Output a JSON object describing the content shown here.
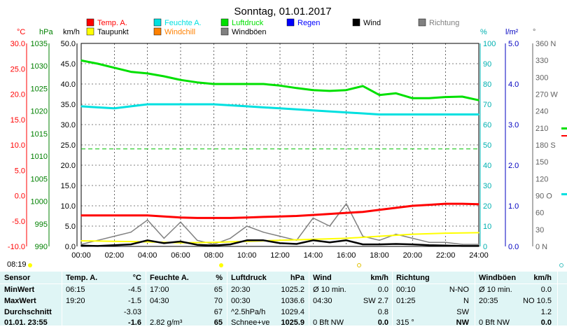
{
  "chart_data": {
    "type": "line",
    "title": "Sonntag, 01.01.2017",
    "x_ticks": [
      "00:00",
      "02:00",
      "04:00",
      "06:00",
      "08:00",
      "10:00",
      "12:00",
      "14:00",
      "16:00",
      "18:00",
      "20:00",
      "22:00",
      "24:00"
    ],
    "left_axes": [
      {
        "unit": "°C",
        "ticks": [
          "30.0",
          "25.0",
          "20.0",
          "15.0",
          "10.0",
          "5.0",
          "0.0",
          "-5.0",
          "-10.0"
        ],
        "color": "#ff0000",
        "range": [
          -10,
          30
        ]
      },
      {
        "unit": "hPa",
        "ticks": [
          "1035",
          "1030",
          "1025",
          "1020",
          "1015",
          "1010",
          "1005",
          "1000",
          "995",
          "990"
        ],
        "color": "#008000",
        "range": [
          990,
          1040
        ]
      },
      {
        "unit": "km/h",
        "ticks": [
          "50.0",
          "45.0",
          "40.0",
          "35.0",
          "30.0",
          "25.0",
          "20.0",
          "15.0",
          "10.0",
          "5.0",
          "0.0"
        ],
        "color": "#000000",
        "range": [
          0,
          50
        ]
      }
    ],
    "right_axes": [
      {
        "unit": "%",
        "ticks": [
          "100",
          "90",
          "80",
          "70",
          "60",
          "50",
          "40",
          "30",
          "20",
          "10",
          "0"
        ],
        "color": "#00b0b0",
        "range": [
          0,
          100
        ]
      },
      {
        "unit": "l/m²",
        "ticks": [
          "5.0",
          "4.0",
          "3.0",
          "2.0",
          "1.0",
          "0.0"
        ],
        "color": "#0000c0",
        "range": [
          0,
          5
        ]
      },
      {
        "unit": "°",
        "ticks": [
          "360 N",
          "330",
          "300",
          "270 W",
          "240",
          "210",
          "180 S",
          "150",
          "120",
          "90 O",
          "60",
          "30",
          "0 N"
        ],
        "color": "#606060",
        "range": [
          0,
          360
        ]
      }
    ],
    "legend": [
      {
        "name": "Temp. A.",
        "color": "#ff0000"
      },
      {
        "name": "Feuchte A.",
        "color": "#00e0e0"
      },
      {
        "name": "Luftdruck",
        "color": "#00e000"
      },
      {
        "name": "Regen",
        "color": "#0000ff"
      },
      {
        "name": "Wind",
        "color": "#000000"
      },
      {
        "name": "Richtung",
        "color": "#808080"
      },
      {
        "name": "Taupunkt",
        "color": "#ffff00"
      },
      {
        "name": "Windchill",
        "color": "#ff8000"
      },
      {
        "name": "Windböen",
        "color": "#808080"
      }
    ],
    "series": [
      {
        "name": "Temp. A.",
        "color": "#ff0000",
        "x": [
          0,
          1,
          2,
          3,
          4,
          5,
          6,
          7,
          8,
          9,
          10,
          11,
          12,
          13,
          14,
          15,
          16,
          17,
          18,
          19,
          20,
          21,
          22,
          23,
          24
        ],
        "values": [
          -3.9,
          -3.9,
          -3.9,
          -3.9,
          -3.9,
          -4.1,
          -4.3,
          -4.4,
          -4.4,
          -4.4,
          -4.3,
          -4.2,
          -4.1,
          -4.0,
          -3.8,
          -3.6,
          -3.4,
          -3.2,
          -2.8,
          -2.4,
          -2.0,
          -1.8,
          -1.6,
          -1.6,
          -1.7
        ]
      },
      {
        "name": "Feuchte A.",
        "color": "#00e0e0",
        "x": [
          0,
          2,
          4,
          6,
          8,
          10,
          12,
          14,
          16,
          18,
          20,
          22,
          24
        ],
        "values": [
          69,
          68,
          70,
          70,
          70,
          69,
          68,
          67,
          66,
          65,
          65,
          65,
          65
        ]
      },
      {
        "name": "Luftdruck",
        "color": "#00e000",
        "x": [
          0,
          1,
          2,
          3,
          4,
          5,
          6,
          7,
          8,
          9,
          10,
          11,
          12,
          13,
          14,
          15,
          16,
          17,
          18,
          19,
          20,
          21,
          22,
          23,
          24
        ],
        "values": [
          1035.8,
          1035.0,
          1034.0,
          1033.0,
          1032.6,
          1031.9,
          1031.0,
          1030.4,
          1030.0,
          1030.0,
          1030.0,
          1030.0,
          1029.6,
          1029.0,
          1028.5,
          1028.3,
          1028.5,
          1029.5,
          1027.3,
          1027.7,
          1026.5,
          1026.5,
          1026.8,
          1026.9,
          1026.0
        ]
      },
      {
        "name": "Taupunkt",
        "color": "#ffff00",
        "x": [
          0,
          2,
          4,
          6,
          8,
          10,
          12,
          14,
          16,
          18,
          20,
          22,
          24
        ],
        "values": [
          -8.9,
          -9.0,
          -9.1,
          -9.3,
          -9.2,
          -9.0,
          -8.8,
          -8.6,
          -8.4,
          -8.0,
          -7.6,
          -7.4,
          -7.3
        ]
      },
      {
        "name": "Wind",
        "color": "#000000",
        "x": [
          0,
          1,
          2,
          3,
          4,
          5,
          6,
          7,
          8,
          9,
          10,
          11,
          12,
          13,
          14,
          15,
          16,
          17,
          18,
          19,
          20,
          21,
          22,
          23,
          24
        ],
        "values": [
          0.2,
          0.1,
          0.3,
          0.5,
          1.5,
          0.8,
          1.2,
          0.4,
          0.2,
          0.5,
          1.5,
          1.5,
          0.8,
          0.6,
          1.5,
          1.0,
          1.5,
          0.5,
          0.5,
          0.6,
          0.5,
          0.3,
          0.2,
          0.1,
          0.1
        ]
      },
      {
        "name": "Windböen",
        "color": "#808080",
        "x": [
          0,
          1,
          2,
          3,
          4,
          5,
          6,
          7,
          8,
          9,
          10,
          11,
          12,
          13,
          14,
          15,
          16,
          17,
          18,
          19,
          20,
          21,
          22,
          23,
          24
        ],
        "values": [
          0.5,
          1.5,
          2.5,
          3.5,
          6.5,
          2.0,
          6.0,
          1.5,
          0.5,
          2.0,
          5.0,
          3.5,
          2.5,
          1.5,
          7.0,
          5.0,
          10.5,
          2.5,
          1.5,
          3.0,
          2.0,
          1.0,
          1.0,
          0.5,
          0.5
        ]
      }
    ],
    "ylim_temp": [
      -10,
      30
    ],
    "grid": true
  },
  "time_label": "08:19",
  "stats": {
    "headers": [
      "Sensor",
      "Temp. A.",
      "°C",
      "Feuchte A.",
      "%",
      "Luftdruck",
      "hPa",
      "Wind",
      "km/h",
      "Richtung",
      "",
      "Windböen",
      "km/h"
    ],
    "rows": [
      [
        "MinWert",
        "06:15",
        "-4.5",
        "17:00",
        "65",
        "20:30",
        "1025.2",
        "Ø 10 min.",
        "0.0",
        "00:10",
        "N-NO",
        "Ø 10 min.",
        "0.0"
      ],
      [
        "MaxWert",
        "19:20",
        "-1.5",
        "04:30",
        "70",
        "00:30",
        "1036.6",
        "04:30",
        "SW 2.7",
        "01:25",
        "N",
        "20:35",
        "NO 10.5"
      ],
      [
        "Durchschnitt",
        "",
        "-3.03",
        "",
        "67",
        "^2.5hPa/h",
        "1029.4",
        "",
        "0.8",
        "",
        "SW",
        "",
        "1.2"
      ],
      [
        "01.01. 23:55",
        "",
        "-1.6",
        "2.82 g/m³",
        "65",
        "Schnee+ve",
        "1025.9",
        "0 Bft NW",
        "0.0",
        "315 °",
        "NW",
        "0 Bft NW",
        "0.0"
      ]
    ]
  }
}
